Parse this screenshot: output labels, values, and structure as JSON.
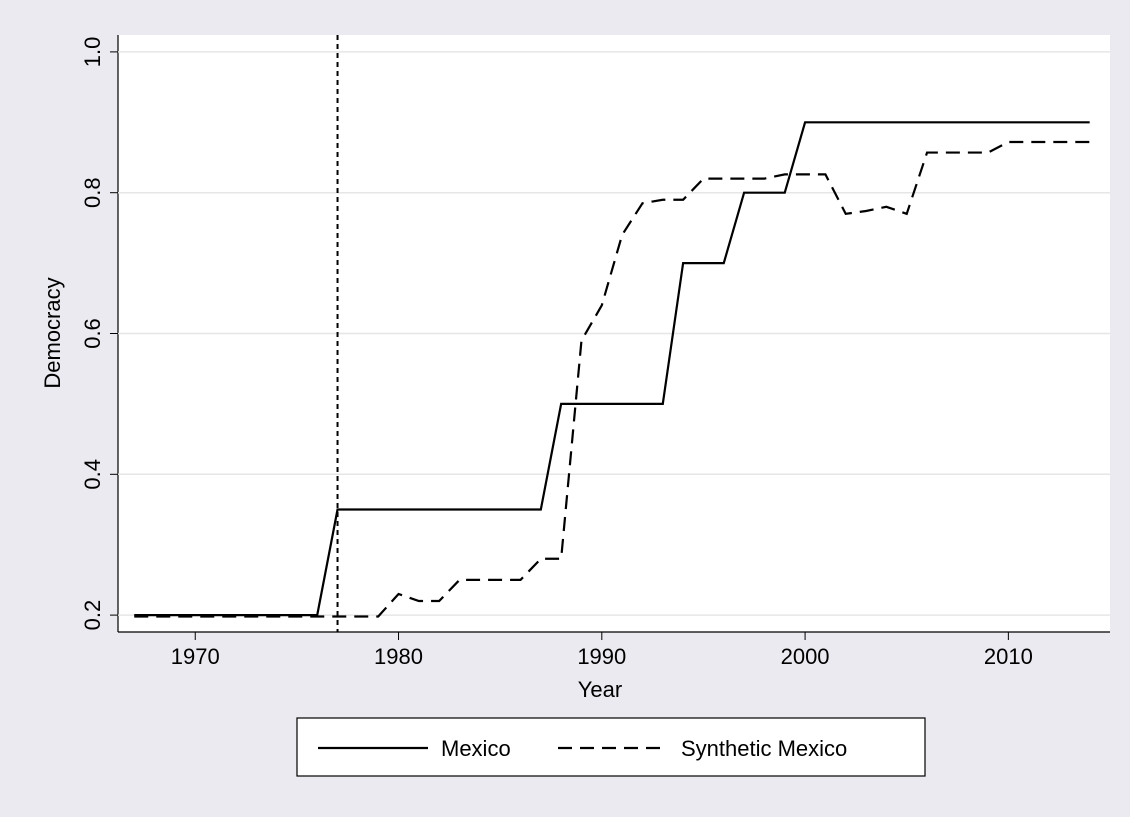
{
  "chart_data": {
    "type": "line",
    "xlabel": "Year",
    "ylabel": "Democracy",
    "x": [
      1967,
      1968,
      1969,
      1970,
      1971,
      1972,
      1973,
      1974,
      1975,
      1976,
      1977,
      1978,
      1979,
      1980,
      1981,
      1982,
      1983,
      1984,
      1985,
      1986,
      1987,
      1988,
      1989,
      1990,
      1991,
      1992,
      1993,
      1994,
      1995,
      1996,
      1997,
      1998,
      1999,
      2000,
      2001,
      2002,
      2003,
      2004,
      2005,
      2006,
      2007,
      2008,
      2009,
      2010,
      2011,
      2012,
      2013,
      2014
    ],
    "series": [
      {
        "name": "Mexico",
        "color": "#000000",
        "dash": "solid",
        "values": [
          0.2,
          0.2,
          0.2,
          0.2,
          0.2,
          0.2,
          0.2,
          0.2,
          0.2,
          0.2,
          0.35,
          0.35,
          0.35,
          0.35,
          0.35,
          0.35,
          0.35,
          0.35,
          0.35,
          0.35,
          0.35,
          0.5,
          0.5,
          0.5,
          0.5,
          0.5,
          0.5,
          0.7,
          0.7,
          0.7,
          0.8,
          0.8,
          0.8,
          0.9,
          0.9,
          0.9,
          0.9,
          0.9,
          0.9,
          0.9,
          0.9,
          0.9,
          0.9,
          0.9,
          0.9,
          0.9,
          0.9,
          0.9
        ]
      },
      {
        "name": "Synthetic Mexico",
        "color": "#000000",
        "dash": "dashed",
        "values": [
          0.198,
          0.198,
          0.198,
          0.198,
          0.198,
          0.198,
          0.198,
          0.198,
          0.198,
          0.198,
          0.198,
          0.198,
          0.198,
          0.23,
          0.22,
          0.22,
          0.25,
          0.25,
          0.25,
          0.25,
          0.28,
          0.28,
          0.59,
          0.64,
          0.74,
          0.785,
          0.79,
          0.79,
          0.82,
          0.82,
          0.82,
          0.82,
          0.826,
          0.826,
          0.826,
          0.77,
          0.774,
          0.78,
          0.77,
          0.857,
          0.857,
          0.857,
          0.857,
          0.872,
          0.872,
          0.872,
          0.872,
          0.872
        ]
      }
    ],
    "vline": 1977,
    "xlim": [
      1966.2,
      2015.0
    ],
    "xticks": [
      1970,
      1980,
      1990,
      2000,
      2010
    ],
    "ylim": [
      0.176,
      1.024
    ],
    "yticks": [
      0.2,
      0.4,
      0.6,
      0.8,
      {
        "value": 1.0,
        "label": "1.0"
      }
    ],
    "grid": true,
    "legend": "bottom"
  }
}
